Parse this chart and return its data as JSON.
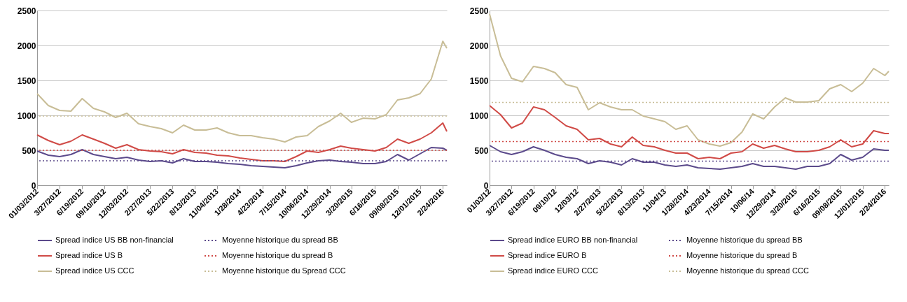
{
  "chart_data": [
    {
      "type": "line",
      "x": [
        "2012-01-03",
        "2012-02-14",
        "2012-03-27",
        "2012-05-08",
        "2012-06-19",
        "2012-07-31",
        "2012-09-10",
        "2012-10-22",
        "2012-12-03",
        "2013-01-15",
        "2013-02-27",
        "2013-04-10",
        "2013-05-22",
        "2013-07-02",
        "2013-08-13",
        "2013-09-24",
        "2013-11-04",
        "2013-12-16",
        "2014-01-28",
        "2014-03-11",
        "2014-04-23",
        "2014-06-03",
        "2014-07-15",
        "2014-08-26",
        "2014-10-06",
        "2014-11-17",
        "2014-12-29",
        "2015-02-08",
        "2015-03-20",
        "2015-05-03",
        "2015-06-16",
        "2015-07-28",
        "2015-09-08",
        "2015-10-20",
        "2015-12-01",
        "2016-01-12",
        "2016-02-24",
        "2016-03-10"
      ],
      "series": [
        {
          "name": "Spread indice US BB non-financial",
          "color": "#5b4a8b",
          "values": [
            490,
            430,
            410,
            440,
            510,
            440,
            410,
            380,
            400,
            360,
            340,
            350,
            320,
            380,
            340,
            340,
            330,
            310,
            300,
            280,
            270,
            260,
            250,
            280,
            320,
            350,
            360,
            340,
            330,
            310,
            310,
            340,
            440,
            360,
            450,
            540,
            530,
            500
          ]
        },
        {
          "name": "Spread indice US B",
          "color": "#d04a46",
          "values": [
            720,
            640,
            580,
            630,
            720,
            660,
            600,
            530,
            580,
            510,
            490,
            480,
            450,
            510,
            470,
            460,
            430,
            420,
            390,
            370,
            350,
            350,
            340,
            410,
            490,
            470,
            510,
            560,
            530,
            510,
            490,
            540,
            660,
            600,
            660,
            750,
            890,
            770
          ]
        },
        {
          "name": "Spread indice US CCC",
          "color": "#c8bd96",
          "values": [
            1310,
            1140,
            1070,
            1060,
            1240,
            1100,
            1050,
            970,
            1030,
            880,
            840,
            810,
            750,
            860,
            790,
            790,
            820,
            750,
            710,
            710,
            680,
            660,
            620,
            690,
            710,
            840,
            920,
            1030,
            900,
            960,
            950,
            1010,
            1220,
            1250,
            1310,
            1520,
            2060,
            1960
          ]
        }
      ],
      "ref_lines": [
        {
          "axis": "y",
          "value": 350,
          "label": "Moyenne historique du spread BB",
          "color": "#5b4a8b",
          "line_style": "dotted"
        },
        {
          "axis": "y",
          "value": 500,
          "label": "Moyenne historique du spread B",
          "color": "#d04a46",
          "line_style": "dotted"
        },
        {
          "axis": "y",
          "value": 990,
          "label": "Moyenne historique du Spread CCC",
          "color": "#c8bd96",
          "line_style": "dotted"
        }
      ],
      "xlim": [
        "2012-01-03",
        "2016-03-10"
      ],
      "xticks": [
        {
          "value": "2012-01-03",
          "label": "01/03/2012"
        },
        {
          "value": "2012-03-27",
          "label": "3/27/2012"
        },
        {
          "value": "2012-06-19",
          "label": "6/19/2012"
        },
        {
          "value": "2012-09-10",
          "label": "09/10/2012"
        },
        {
          "value": "2012-12-03",
          "label": "12/03/2012"
        },
        {
          "value": "2013-02-27",
          "label": "2/27/2013"
        },
        {
          "value": "2013-05-22",
          "label": "5/22/2013"
        },
        {
          "value": "2013-08-13",
          "label": "8/13/2013"
        },
        {
          "value": "2013-11-04",
          "label": "11/04/2013"
        },
        {
          "value": "2014-01-28",
          "label": "1/28/2014"
        },
        {
          "value": "2014-04-23",
          "label": "4/23/2014"
        },
        {
          "value": "2014-07-15",
          "label": "7/15/2014"
        },
        {
          "value": "2014-10-06",
          "label": "10/06/2014"
        },
        {
          "value": "2014-12-29",
          "label": "12/29/2014"
        },
        {
          "value": "2015-03-20",
          "label": "3/20/2015"
        },
        {
          "value": "2015-06-16",
          "label": "6/16/2015"
        },
        {
          "value": "2015-09-08",
          "label": "09/08/2015"
        },
        {
          "value": "2015-12-01",
          "label": "12/01/2015"
        },
        {
          "value": "2016-02-24",
          "label": "2/24/2016"
        }
      ],
      "ylim": [
        0,
        2500
      ],
      "yticks": [
        0,
        500,
        1000,
        1500,
        2000,
        2500
      ],
      "grid": "y",
      "legend": "bottom",
      "line_style": "solid"
    },
    {
      "type": "line",
      "x": [
        "2012-01-03",
        "2012-02-14",
        "2012-03-27",
        "2012-05-08",
        "2012-06-19",
        "2012-07-31",
        "2012-09-10",
        "2012-10-22",
        "2012-12-03",
        "2013-01-15",
        "2013-02-27",
        "2013-04-10",
        "2013-05-22",
        "2013-07-02",
        "2013-08-13",
        "2013-09-24",
        "2013-11-04",
        "2013-12-16",
        "2014-01-28",
        "2014-03-11",
        "2014-04-23",
        "2014-06-03",
        "2014-07-15",
        "2014-08-26",
        "2014-10-06",
        "2014-11-17",
        "2014-12-29",
        "2015-02-08",
        "2015-03-20",
        "2015-05-03",
        "2015-06-16",
        "2015-07-28",
        "2015-09-08",
        "2015-10-20",
        "2015-12-01",
        "2016-01-12",
        "2016-02-24",
        "2016-03-10"
      ],
      "series": [
        {
          "name": "Spread indice EURO BB non-financial",
          "color": "#5b4a8b",
          "values": [
            570,
            480,
            440,
            480,
            550,
            500,
            440,
            400,
            380,
            310,
            350,
            330,
            290,
            380,
            330,
            330,
            290,
            270,
            290,
            250,
            240,
            230,
            250,
            270,
            310,
            270,
            270,
            250,
            230,
            270,
            270,
            310,
            440,
            360,
            400,
            520,
            500,
            500
          ]
        },
        {
          "name": "Spread indice EURO B",
          "color": "#d04a46",
          "values": [
            1140,
            1010,
            820,
            890,
            1120,
            1080,
            970,
            850,
            800,
            650,
            670,
            590,
            550,
            690,
            570,
            550,
            500,
            460,
            460,
            380,
            400,
            380,
            460,
            480,
            590,
            530,
            570,
            520,
            480,
            480,
            500,
            550,
            650,
            550,
            590,
            780,
            740,
            740
          ]
        },
        {
          "name": "Spread indice EURO CCC",
          "color": "#c8bd96",
          "values": [
            2450,
            1850,
            1530,
            1480,
            1700,
            1670,
            1610,
            1440,
            1400,
            1080,
            1180,
            1120,
            1080,
            1080,
            990,
            950,
            910,
            800,
            850,
            650,
            590,
            560,
            610,
            760,
            1020,
            950,
            1120,
            1250,
            1190,
            1190,
            1210,
            1380,
            1440,
            1340,
            1460,
            1670,
            1570,
            1630
          ]
        }
      ],
      "ref_lines": [
        {
          "axis": "y",
          "value": 345,
          "label": "Moyenne historique du spread BB",
          "color": "#5b4a8b",
          "line_style": "dotted"
        },
        {
          "axis": "y",
          "value": 625,
          "label": "Moyenne historique du spread B",
          "color": "#d04a46",
          "line_style": "dotted"
        },
        {
          "axis": "y",
          "value": 1185,
          "label": "Moyenne historique du spread CCC",
          "color": "#c8bd96",
          "line_style": "dotted"
        }
      ],
      "xlim": [
        "2012-01-03",
        "2016-03-10"
      ],
      "xticks": [
        {
          "value": "2012-01-03",
          "label": "01/03/12"
        },
        {
          "value": "2012-03-27",
          "label": "3/27/2012"
        },
        {
          "value": "2012-06-19",
          "label": "6/19/2012"
        },
        {
          "value": "2012-09-10",
          "label": "09/10/12"
        },
        {
          "value": "2012-12-03",
          "label": "12/03/12"
        },
        {
          "value": "2013-02-27",
          "label": "2/27/2013"
        },
        {
          "value": "2013-05-22",
          "label": "5/22/2013"
        },
        {
          "value": "2013-08-13",
          "label": "8/13/2013"
        },
        {
          "value": "2013-11-04",
          "label": "11/04/13"
        },
        {
          "value": "2014-01-28",
          "label": "1/28/2014"
        },
        {
          "value": "2014-04-23",
          "label": "4/23/2014"
        },
        {
          "value": "2014-07-15",
          "label": "7/15/2014"
        },
        {
          "value": "2014-10-06",
          "label": "10/06/14"
        },
        {
          "value": "2014-12-29",
          "label": "12/29/2014"
        },
        {
          "value": "2015-03-20",
          "label": "3/20/2015"
        },
        {
          "value": "2015-06-16",
          "label": "6/16/2015"
        },
        {
          "value": "2015-09-08",
          "label": "09/08/2015"
        },
        {
          "value": "2015-12-01",
          "label": "12/01/2015"
        },
        {
          "value": "2016-02-24",
          "label": "2/24/2016"
        }
      ],
      "ylim": [
        0,
        2500
      ],
      "yticks": [
        0,
        500,
        1000,
        1500,
        2000,
        2500
      ],
      "grid": "y",
      "legend": "bottom",
      "line_style": "solid"
    }
  ]
}
